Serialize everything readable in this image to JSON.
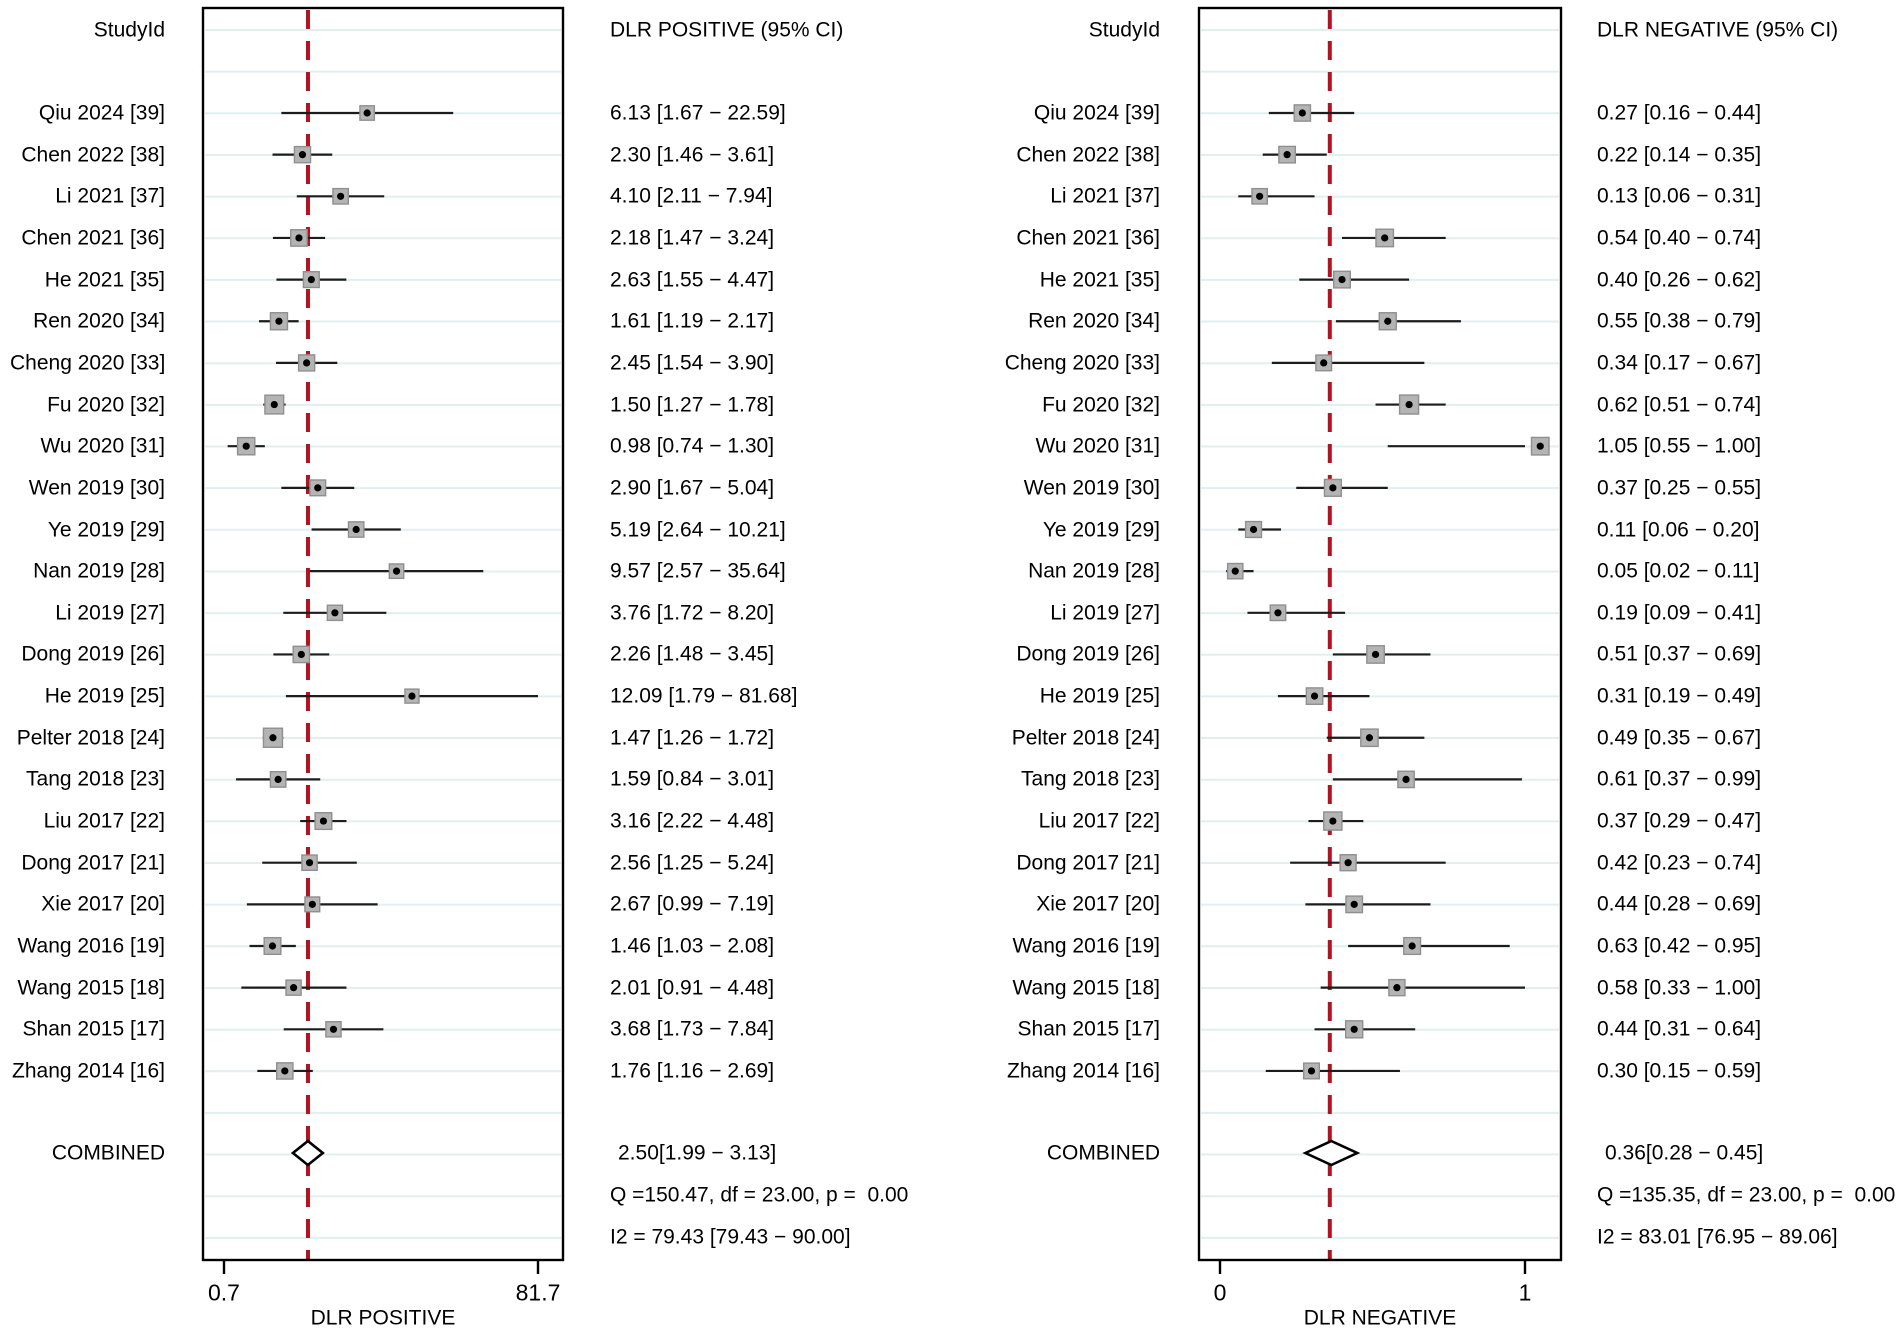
{
  "figure": {
    "background": "#ffffff",
    "colors": {
      "marker_fill": "#b4b4b4",
      "marker_border": "#8f8f8f",
      "marker_dot": "#000000",
      "ci_line": "#1c1c1c",
      "grid_line": "#e1efef",
      "ref_line": "#b4121f",
      "box_border": "#000000",
      "diamond_fill": "#ffffff",
      "text": "#000000"
    }
  },
  "chart_data": [
    {
      "type": "scatter",
      "subtype": "forest-plot",
      "id": "dlr-positive-panel",
      "studyid_header": "StudyId",
      "ci_header": "DLR POSITIVE (95% CI)",
      "axis_title": "DLR POSITIVE",
      "axis_scale": "log",
      "axis_ticks": [
        {
          "label": "0.7",
          "value": 0.7
        },
        {
          "label": "81.7",
          "value": 81.7
        }
      ],
      "grid": true,
      "ref_line_value": 2.5,
      "combined_label": "COMBINED",
      "combined": {
        "text": "2.50[1.99 − 3.13]",
        "est": 2.5,
        "lo": 1.99,
        "hi": 3.13
      },
      "q_text": "Q =150.47, df = 23.00, p =  0.00",
      "i2_text": "I2 = 79.43 [79.43 − 90.00]",
      "studies": [
        {
          "label": "Qiu 2024 [39]",
          "est": 6.13,
          "lo": 1.67,
          "hi": 22.59,
          "text": "6.13 [1.67 − 22.59]"
        },
        {
          "label": "Chen 2022 [38]",
          "est": 2.3,
          "lo": 1.46,
          "hi": 3.61,
          "text": "2.30 [1.46 − 3.61]"
        },
        {
          "label": "Li 2021 [37]",
          "est": 4.1,
          "lo": 2.11,
          "hi": 7.94,
          "text": "4.10 [2.11 − 7.94]"
        },
        {
          "label": "Chen 2021 [36]",
          "est": 2.18,
          "lo": 1.47,
          "hi": 3.24,
          "text": "2.18 [1.47 − 3.24]"
        },
        {
          "label": "He 2021 [35]",
          "est": 2.63,
          "lo": 1.55,
          "hi": 4.47,
          "text": "2.63 [1.55 − 4.47]"
        },
        {
          "label": "Ren 2020 [34]",
          "est": 1.61,
          "lo": 1.19,
          "hi": 2.17,
          "text": "1.61 [1.19 − 2.17]"
        },
        {
          "label": "Cheng 2020 [33]",
          "est": 2.45,
          "lo": 1.54,
          "hi": 3.9,
          "text": "2.45 [1.54 − 3.90]"
        },
        {
          "label": "Fu 2020 [32]",
          "est": 1.5,
          "lo": 1.27,
          "hi": 1.78,
          "text": "1.50 [1.27 − 1.78]"
        },
        {
          "label": "Wu 2020 [31]",
          "est": 0.98,
          "lo": 0.74,
          "hi": 1.3,
          "text": "0.98 [0.74 − 1.30]"
        },
        {
          "label": "Wen 2019 [30]",
          "est": 2.9,
          "lo": 1.67,
          "hi": 5.04,
          "text": "2.90 [1.67 − 5.04]"
        },
        {
          "label": "Ye 2019 [29]",
          "est": 5.19,
          "lo": 2.64,
          "hi": 10.21,
          "text": "5.19 [2.64 − 10.21]"
        },
        {
          "label": "Nan 2019 [28]",
          "est": 9.57,
          "lo": 2.57,
          "hi": 35.64,
          "text": "9.57 [2.57 − 35.64]"
        },
        {
          "label": "Li 2019 [27]",
          "est": 3.76,
          "lo": 1.72,
          "hi": 8.2,
          "text": "3.76 [1.72 − 8.20]"
        },
        {
          "label": "Dong 2019 [26]",
          "est": 2.26,
          "lo": 1.48,
          "hi": 3.45,
          "text": "2.26 [1.48 − 3.45]"
        },
        {
          "label": "He 2019 [25]",
          "est": 12.09,
          "lo": 1.79,
          "hi": 81.68,
          "text": "12.09 [1.79 − 81.68]"
        },
        {
          "label": "Pelter 2018 [24]",
          "est": 1.47,
          "lo": 1.26,
          "hi": 1.72,
          "text": "1.47 [1.26 − 1.72]"
        },
        {
          "label": "Tang 2018 [23]",
          "est": 1.59,
          "lo": 0.84,
          "hi": 3.01,
          "text": "1.59 [0.84 − 3.01]"
        },
        {
          "label": "Liu 2017 [22]",
          "est": 3.16,
          "lo": 2.22,
          "hi": 4.48,
          "text": "3.16 [2.22 − 4.48]"
        },
        {
          "label": "Dong 2017 [21]",
          "est": 2.56,
          "lo": 1.25,
          "hi": 5.24,
          "text": "2.56 [1.25 − 5.24]"
        },
        {
          "label": "Xie 2017 [20]",
          "est": 2.67,
          "lo": 0.99,
          "hi": 7.19,
          "text": "2.67 [0.99 − 7.19]"
        },
        {
          "label": "Wang 2016 [19]",
          "est": 1.46,
          "lo": 1.03,
          "hi": 2.08,
          "text": "1.46 [1.03 − 2.08]"
        },
        {
          "label": "Wang 2015 [18]",
          "est": 2.01,
          "lo": 0.91,
          "hi": 4.48,
          "text": "2.01 [0.91 − 4.48]"
        },
        {
          "label": "Shan 2015 [17]",
          "est": 3.68,
          "lo": 1.73,
          "hi": 7.84,
          "text": "3.68 [1.73 − 7.84]"
        },
        {
          "label": "Zhang 2014 [16]",
          "est": 1.76,
          "lo": 1.16,
          "hi": 2.69,
          "text": "1.76 [1.16 − 2.69]"
        }
      ]
    },
    {
      "type": "scatter",
      "subtype": "forest-plot",
      "id": "dlr-negative-panel",
      "studyid_header": "StudyId",
      "ci_header": "DLR NEGATIVE (95% CI)",
      "axis_title": "DLR NEGATIVE",
      "axis_scale": "linear",
      "axis_ticks": [
        {
          "label": "0",
          "value": 0
        },
        {
          "label": "1",
          "value": 1
        }
      ],
      "grid": true,
      "ref_line_value": 0.36,
      "combined_label": "COMBINED",
      "combined": {
        "text": "0.36[0.28 − 0.45]",
        "est": 0.36,
        "lo": 0.28,
        "hi": 0.45
      },
      "q_text": "Q =135.35, df = 23.00, p =  0.00",
      "i2_text": "I2 = 83.01 [76.95 − 89.06]",
      "studies": [
        {
          "label": "Qiu 2024 [39]",
          "est": 0.27,
          "lo": 0.16,
          "hi": 0.44,
          "text": "0.27 [0.16 − 0.44]"
        },
        {
          "label": "Chen 2022 [38]",
          "est": 0.22,
          "lo": 0.14,
          "hi": 0.35,
          "text": "0.22 [0.14 − 0.35]"
        },
        {
          "label": "Li 2021 [37]",
          "est": 0.13,
          "lo": 0.06,
          "hi": 0.31,
          "text": "0.13 [0.06 − 0.31]"
        },
        {
          "label": "Chen 2021 [36]",
          "est": 0.54,
          "lo": 0.4,
          "hi": 0.74,
          "text": "0.54 [0.40 − 0.74]"
        },
        {
          "label": "He 2021 [35]",
          "est": 0.4,
          "lo": 0.26,
          "hi": 0.62,
          "text": "0.40 [0.26 − 0.62]"
        },
        {
          "label": "Ren 2020 [34]",
          "est": 0.55,
          "lo": 0.38,
          "hi": 0.79,
          "text": "0.55 [0.38 − 0.79]"
        },
        {
          "label": "Cheng 2020 [33]",
          "est": 0.34,
          "lo": 0.17,
          "hi": 0.67,
          "text": "0.34 [0.17 − 0.67]"
        },
        {
          "label": "Fu 2020 [32]",
          "est": 0.62,
          "lo": 0.51,
          "hi": 0.74,
          "text": "0.62 [0.51 − 0.74]"
        },
        {
          "label": "Wu 2020 [31]",
          "est": 1.05,
          "lo": 0.55,
          "hi": 1.0,
          "text": "1.05 [0.55 − 1.00]"
        },
        {
          "label": "Wen 2019 [30]",
          "est": 0.37,
          "lo": 0.25,
          "hi": 0.55,
          "text": "0.37 [0.25 − 0.55]"
        },
        {
          "label": "Ye 2019 [29]",
          "est": 0.11,
          "lo": 0.06,
          "hi": 0.2,
          "text": "0.11 [0.06 − 0.20]"
        },
        {
          "label": "Nan 2019 [28]",
          "est": 0.05,
          "lo": 0.02,
          "hi": 0.11,
          "text": "0.05 [0.02 − 0.11]"
        },
        {
          "label": "Li 2019 [27]",
          "est": 0.19,
          "lo": 0.09,
          "hi": 0.41,
          "text": "0.19 [0.09 − 0.41]"
        },
        {
          "label": "Dong 2019 [26]",
          "est": 0.51,
          "lo": 0.37,
          "hi": 0.69,
          "text": "0.51 [0.37 − 0.69]"
        },
        {
          "label": "He 2019 [25]",
          "est": 0.31,
          "lo": 0.19,
          "hi": 0.49,
          "text": "0.31 [0.19 − 0.49]"
        },
        {
          "label": "Pelter 2018 [24]",
          "est": 0.49,
          "lo": 0.35,
          "hi": 0.67,
          "text": "0.49 [0.35 − 0.67]"
        },
        {
          "label": "Tang 2018 [23]",
          "est": 0.61,
          "lo": 0.37,
          "hi": 0.99,
          "text": "0.61 [0.37 − 0.99]"
        },
        {
          "label": "Liu 2017 [22]",
          "est": 0.37,
          "lo": 0.29,
          "hi": 0.47,
          "text": "0.37 [0.29 − 0.47]"
        },
        {
          "label": "Dong 2017 [21]",
          "est": 0.42,
          "lo": 0.23,
          "hi": 0.74,
          "text": "0.42 [0.23 − 0.74]"
        },
        {
          "label": "Xie 2017 [20]",
          "est": 0.44,
          "lo": 0.28,
          "hi": 0.69,
          "text": "0.44 [0.28 − 0.69]"
        },
        {
          "label": "Wang 2016 [19]",
          "est": 0.63,
          "lo": 0.42,
          "hi": 0.95,
          "text": "0.63 [0.42 − 0.95]"
        },
        {
          "label": "Wang 2015 [18]",
          "est": 0.58,
          "lo": 0.33,
          "hi": 1.0,
          "text": "0.58 [0.33 − 1.00]"
        },
        {
          "label": "Shan 2015 [17]",
          "est": 0.44,
          "lo": 0.31,
          "hi": 0.64,
          "text": "0.44 [0.31 − 0.64]"
        },
        {
          "label": "Zhang 2014 [16]",
          "est": 0.3,
          "lo": 0.15,
          "hi": 0.59,
          "text": "0.30 [0.15 − 0.59]"
        }
      ]
    }
  ]
}
